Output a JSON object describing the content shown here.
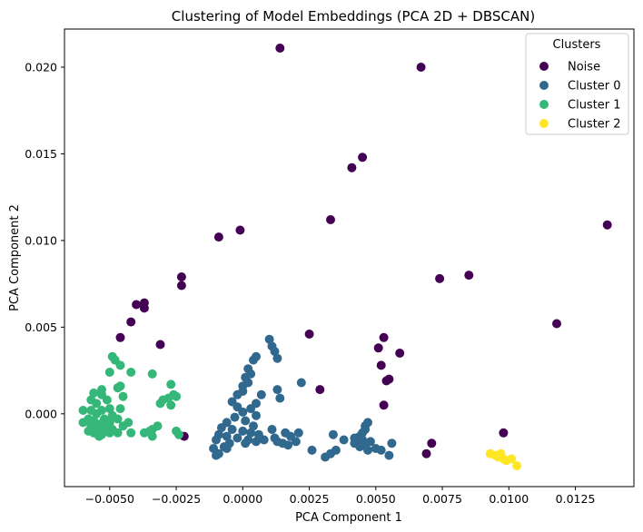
{
  "chart_data": {
    "type": "scatter",
    "title": "Clustering of Model Embeddings (PCA 2D + DBSCAN)",
    "xlabel": "PCA Component 1",
    "ylabel": "PCA Component 2",
    "xlim": [
      -0.0067,
      0.0147
    ],
    "ylim": [
      -0.0042,
      0.0222
    ],
    "x_ticks": [
      -0.005,
      -0.0025,
      0.0,
      0.0025,
      0.005,
      0.0075,
      0.01,
      0.0125
    ],
    "x_tick_labels": [
      "−0.0050",
      "−0.0025",
      "0.0000",
      "0.0025",
      "0.0050",
      "0.0075",
      "0.0100",
      "0.0125"
    ],
    "y_ticks": [
      0.0,
      0.005,
      0.01,
      0.015,
      0.02
    ],
    "y_tick_labels": [
      "0.000",
      "0.005",
      "0.010",
      "0.015",
      "0.020"
    ],
    "grid": false,
    "legend": {
      "title": "Clusters",
      "placement": "top-right"
    },
    "series": [
      {
        "name": "Noise",
        "color": "#440154",
        "points": [
          [
            0.0014,
            0.0211
          ],
          [
            0.0067,
            0.02
          ],
          [
            0.0045,
            0.0148
          ],
          [
            0.0041,
            0.0142
          ],
          [
            0.0137,
            0.0109
          ],
          [
            0.0033,
            0.0112
          ],
          [
            -0.0001,
            0.0106
          ],
          [
            -0.0009,
            0.0102
          ],
          [
            0.0085,
            0.008
          ],
          [
            0.0074,
            0.0078
          ],
          [
            -0.0023,
            0.0079
          ],
          [
            -0.0023,
            0.0074
          ],
          [
            -0.004,
            0.0063
          ],
          [
            -0.0037,
            0.0064
          ],
          [
            -0.0037,
            0.0061
          ],
          [
            -0.0042,
            0.0053
          ],
          [
            0.0118,
            0.0052
          ],
          [
            -0.0046,
            0.0044
          ],
          [
            0.0025,
            0.0046
          ],
          [
            0.0053,
            0.0044
          ],
          [
            -0.0031,
            0.004
          ],
          [
            0.0051,
            0.0038
          ],
          [
            0.0059,
            0.0035
          ],
          [
            0.0052,
            0.0028
          ],
          [
            0.0055,
            0.002
          ],
          [
            0.0054,
            0.0019
          ],
          [
            0.0029,
            0.0014
          ],
          [
            0.0053,
            0.0005
          ],
          [
            -0.0022,
            -0.0013
          ],
          [
            0.0098,
            -0.0011
          ],
          [
            0.0071,
            -0.0017
          ],
          [
            0.0069,
            -0.0023
          ]
        ]
      },
      {
        "name": "Cluster 0",
        "color": "#31688e",
        "points": [
          [
            0.001,
            0.0043
          ],
          [
            0.0011,
            0.0039
          ],
          [
            0.0012,
            0.0036
          ],
          [
            0.0005,
            0.0033
          ],
          [
            0.0004,
            0.0031
          ],
          [
            0.0013,
            0.0032
          ],
          [
            0.0002,
            0.0026
          ],
          [
            0.0003,
            0.0023
          ],
          [
            0.0001,
            0.0021
          ],
          [
            0.0002,
            0.0018
          ],
          [
            0.0022,
            0.0018
          ],
          [
            0.0,
            0.0016
          ],
          [
            0.0,
            0.0013
          ],
          [
            0.0013,
            0.0014
          ],
          [
            -0.0002,
            0.0011
          ],
          [
            0.0007,
            0.0011
          ],
          [
            0.0014,
            0.0009
          ],
          [
            -0.0004,
            0.0007
          ],
          [
            0.0005,
            0.0006
          ],
          [
            -0.0002,
            0.0004
          ],
          [
            0.0003,
            0.0003
          ],
          [
            0.0,
            0.0001
          ],
          [
            0.0005,
            -0.0001
          ],
          [
            -0.0003,
            -0.0002
          ],
          [
            0.0001,
            -0.0004
          ],
          [
            -0.0006,
            -0.0005
          ],
          [
            0.0004,
            -0.0007
          ],
          [
            -0.0008,
            -0.0008
          ],
          [
            -0.0004,
            -0.0009
          ],
          [
            0.0,
            -0.001
          ],
          [
            0.0003,
            -0.0011
          ],
          [
            0.0006,
            -0.0012
          ],
          [
            0.0011,
            -0.0009
          ],
          [
            0.0016,
            -0.0011
          ],
          [
            0.0021,
            -0.0011
          ],
          [
            -0.0009,
            -0.0012
          ],
          [
            -0.0006,
            -0.0013
          ],
          [
            -0.0002,
            -0.0014
          ],
          [
            0.0002,
            -0.0015
          ],
          [
            0.0008,
            -0.0015
          ],
          [
            0.0012,
            -0.0014
          ],
          [
            0.0018,
            -0.0013
          ],
          [
            0.002,
            -0.0016
          ],
          [
            -0.001,
            -0.0015
          ],
          [
            -0.0005,
            -0.0017
          ],
          [
            0.0001,
            -0.0017
          ],
          [
            0.0005,
            -0.0016
          ],
          [
            0.0013,
            -0.0016
          ],
          [
            0.0015,
            -0.0017
          ],
          [
            -0.0007,
            -0.0019
          ],
          [
            0.0017,
            -0.0018
          ],
          [
            -0.0011,
            -0.002
          ],
          [
            -0.0006,
            -0.002
          ],
          [
            -0.0009,
            -0.0023
          ],
          [
            -0.001,
            -0.0024
          ],
          [
            0.0026,
            -0.0021
          ],
          [
            0.0031,
            -0.0025
          ],
          [
            0.0033,
            -0.0023
          ],
          [
            0.0035,
            -0.0021
          ],
          [
            0.0034,
            -0.0012
          ],
          [
            0.0038,
            -0.0015
          ],
          [
            0.0043,
            -0.0014
          ],
          [
            0.0045,
            -0.0011
          ],
          [
            0.0046,
            -0.0009
          ],
          [
            0.0046,
            -0.0007
          ],
          [
            0.0047,
            -0.0005
          ],
          [
            0.0044,
            -0.0013
          ],
          [
            0.0042,
            -0.0017
          ],
          [
            0.0044,
            -0.0019
          ],
          [
            0.0046,
            -0.0018
          ],
          [
            0.0048,
            -0.0016
          ],
          [
            0.0047,
            -0.0021
          ],
          [
            0.005,
            -0.002
          ],
          [
            0.0052,
            -0.0021
          ],
          [
            0.0055,
            -0.0024
          ],
          [
            0.0056,
            -0.0017
          ],
          [
            0.0045,
            -0.0015
          ],
          [
            0.0042,
            -0.0014
          ]
        ]
      },
      {
        "name": "Cluster 1",
        "color": "#35b779",
        "points": [
          [
            -0.0049,
            0.0033
          ],
          [
            -0.0048,
            0.0031
          ],
          [
            -0.0046,
            0.0028
          ],
          [
            -0.005,
            0.0024
          ],
          [
            -0.0042,
            0.0024
          ],
          [
            -0.0034,
            0.0023
          ],
          [
            -0.0027,
            0.0017
          ],
          [
            -0.0047,
            0.0015
          ],
          [
            -0.0046,
            0.0016
          ],
          [
            -0.0053,
            0.0014
          ],
          [
            -0.0056,
            0.0012
          ],
          [
            -0.0053,
            0.0011
          ],
          [
            -0.0045,
            0.001
          ],
          [
            -0.0026,
            0.0011
          ],
          [
            -0.0028,
            0.0009
          ],
          [
            -0.003,
            0.0008
          ],
          [
            -0.0025,
            0.001
          ],
          [
            -0.0057,
            0.0008
          ],
          [
            -0.0051,
            0.0008
          ],
          [
            -0.0055,
            0.0006
          ],
          [
            -0.006,
            0.0002
          ],
          [
            -0.005,
            0.0003
          ],
          [
            -0.0046,
            0.0003
          ],
          [
            -0.0031,
            0.0006
          ],
          [
            -0.0027,
            0.0005
          ],
          [
            -0.0057,
            0.0002
          ],
          [
            -0.0053,
            0.0002
          ],
          [
            -0.0055,
            0.0
          ],
          [
            -0.0049,
            -0.0001
          ],
          [
            -0.0058,
            -0.0003
          ],
          [
            -0.0056,
            -0.0004
          ],
          [
            -0.0052,
            -0.0003
          ],
          [
            -0.0047,
            -0.0003
          ],
          [
            -0.006,
            -0.0005
          ],
          [
            -0.0054,
            -0.0006
          ],
          [
            -0.005,
            -0.0005
          ],
          [
            -0.0045,
            -0.0007
          ],
          [
            -0.0057,
            -0.0007
          ],
          [
            -0.0055,
            -0.0009
          ],
          [
            -0.0052,
            -0.0008
          ],
          [
            -0.0049,
            -0.0009
          ],
          [
            -0.0034,
            -0.0009
          ],
          [
            -0.0032,
            -0.0007
          ],
          [
            -0.0035,
            -0.001
          ],
          [
            -0.0037,
            -0.0011
          ],
          [
            -0.0056,
            -0.0011
          ],
          [
            -0.0053,
            -0.0012
          ],
          [
            -0.005,
            -0.0011
          ],
          [
            -0.0047,
            -0.0011
          ],
          [
            -0.0042,
            -0.0011
          ],
          [
            -0.0034,
            -0.0013
          ],
          [
            -0.0025,
            -0.001
          ],
          [
            -0.0024,
            -0.0012
          ],
          [
            -0.0054,
            -0.0013
          ],
          [
            -0.0058,
            -0.001
          ],
          [
            -0.0051,
            -0.0006
          ],
          [
            -0.0043,
            -0.0005
          ]
        ]
      },
      {
        "name": "Cluster 2",
        "color": "#fde725",
        "points": [
          [
            0.0093,
            -0.0023
          ],
          [
            0.0095,
            -0.0024
          ],
          [
            0.0097,
            -0.0023
          ],
          [
            0.0096,
            -0.0025
          ],
          [
            0.0099,
            -0.0027
          ],
          [
            0.0101,
            -0.0026
          ],
          [
            0.0103,
            -0.003
          ],
          [
            0.0098,
            -0.0026
          ]
        ]
      }
    ]
  }
}
